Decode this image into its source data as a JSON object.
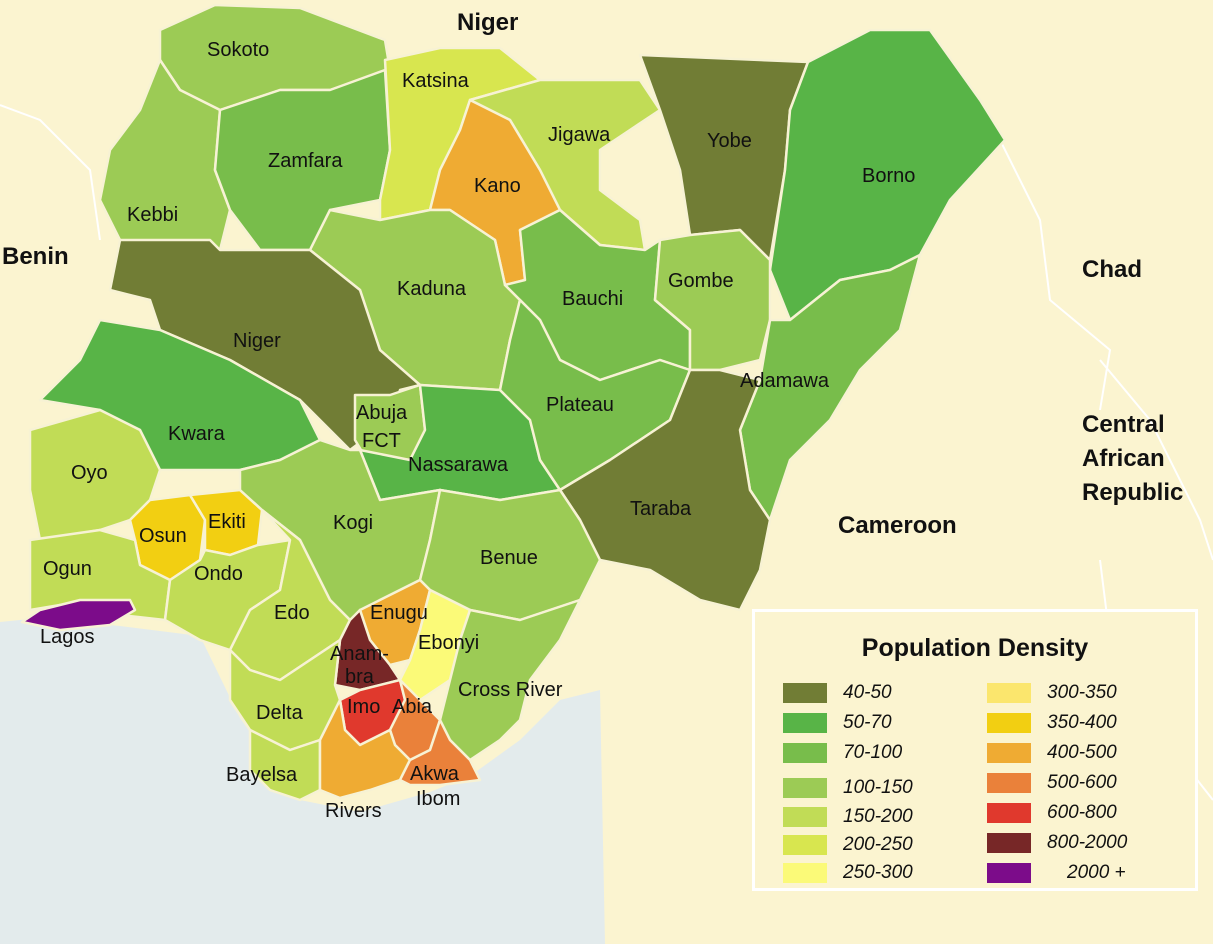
{
  "countries": {
    "niger": "Niger",
    "benin": "Benin",
    "chad": "Chad",
    "car": [
      "Central",
      "African",
      "Republic"
    ],
    "cameroon": "Cameroon"
  },
  "states": {
    "sokoto": "Sokoto",
    "katsina": "Katsina",
    "zamfara": "Zamfara",
    "jigawa": "Jigawa",
    "yobe": "Yobe",
    "kano": "Kano",
    "borno": "Borno",
    "kebbi": "Kebbi",
    "kaduna": "Kaduna",
    "bauchi": "Bauchi",
    "gombe": "Gombe",
    "niger": "Niger",
    "adamawa": "Adamawa",
    "abuja": [
      "Abuja",
      "FCT"
    ],
    "plateau": "Plateau",
    "kwara": "Kwara",
    "nassarawa": "Nassarawa",
    "oyo": "Oyo",
    "osun": "Osun",
    "ekiti": "Ekiti",
    "kogi": "Kogi",
    "taraba": "Taraba",
    "ogun": "Ogun",
    "ondo": "Ondo",
    "benue": "Benue",
    "lagos": "Lagos",
    "edo": "Edo",
    "enugu": "Enugu",
    "anambra": [
      "Anam-",
      "bra"
    ],
    "ebonyi": "Ebonyi",
    "cross_river": "Cross River",
    "delta": "Delta",
    "imo": "Imo",
    "abia": "Abia",
    "bayelsa": "Bayelsa",
    "akwa_ibom": [
      "Akwa",
      "Ibom"
    ],
    "rivers": "Rivers"
  },
  "legend": {
    "title": "Population Density",
    "items": [
      {
        "label": "40-50",
        "color": "#717d35"
      },
      {
        "label": "50-70",
        "color": "#58b447"
      },
      {
        "label": "70-100",
        "color": "#78bd4b"
      },
      {
        "label": "100-150",
        "color": "#9ccb55"
      },
      {
        "label": "150-200",
        "color": "#c1dc56"
      },
      {
        "label": "200-250",
        "color": "#d8e64f"
      },
      {
        "label": "250-300",
        "color": "#fbfa78"
      },
      {
        "label": "300-350",
        "color": "#fbe66d"
      },
      {
        "label": "350-400",
        "color": "#f2cf12"
      },
      {
        "label": "400-500",
        "color": "#efab33"
      },
      {
        "label": "500-600",
        "color": "#ea813a"
      },
      {
        "label": "600-800",
        "color": "#e0392d"
      },
      {
        "label": "800-2000",
        "color": "#772727"
      },
      {
        "label": "2000 +",
        "color": "#7c0c8a"
      }
    ]
  }
}
